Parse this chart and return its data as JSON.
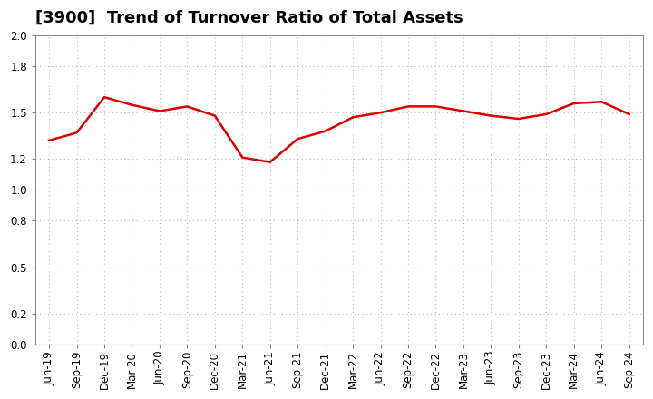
{
  "title": "[3900]  Trend of Turnover Ratio of Total Assets",
  "x_labels": [
    "Jun-19",
    "Sep-19",
    "Dec-19",
    "Mar-20",
    "Jun-20",
    "Sep-20",
    "Dec-20",
    "Mar-21",
    "Jun-21",
    "Sep-21",
    "Dec-21",
    "Mar-22",
    "Jun-22",
    "Sep-22",
    "Dec-22",
    "Mar-23",
    "Jun-23",
    "Sep-23",
    "Dec-23",
    "Mar-24",
    "Jun-24",
    "Sep-24"
  ],
  "y_values": [
    1.32,
    1.37,
    1.6,
    1.55,
    1.51,
    1.54,
    1.48,
    1.21,
    1.18,
    1.33,
    1.38,
    1.47,
    1.5,
    1.54,
    1.54,
    1.51,
    1.48,
    1.46,
    1.49,
    1.56,
    1.57,
    1.49
  ],
  "line_color": "#dd0000",
  "line_width": 1.8,
  "ylim": [
    0.0,
    2.0
  ],
  "yticks": [
    0.0,
    0.2,
    0.5,
    0.8,
    1.0,
    1.2,
    1.5,
    1.8,
    2.0
  ],
  "background_color": "#ffffff",
  "plot_bg_color": "#ffffff",
  "grid_color": "#bbbbbb",
  "title_fontsize": 13,
  "tick_fontsize": 8.5
}
